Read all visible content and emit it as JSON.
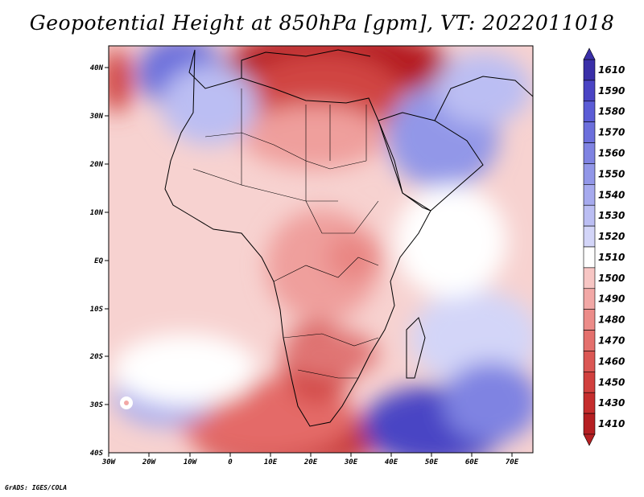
{
  "title": "Geopotential Height at 850hPa [gpm], VT: 2022011018",
  "credit": "GrADS: IGES/COLA",
  "map": {
    "region": "Africa",
    "lon_range": [
      -30,
      75
    ],
    "lat_range": [
      -40,
      45
    ],
    "lon_ticks": [
      "30W",
      "20W",
      "10W",
      "0",
      "10E",
      "20E",
      "30E",
      "40E",
      "50E",
      "60E",
      "70E"
    ],
    "lat_ticks": [
      "40N",
      "30N",
      "20N",
      "10N",
      "EQ",
      "10S",
      "20S",
      "30S",
      "40S"
    ]
  },
  "colorbar": {
    "levels": [
      "1610",
      "1590",
      "1580",
      "1570",
      "1560",
      "1550",
      "1540",
      "1530",
      "1520",
      "1510",
      "1500",
      "1490",
      "1480",
      "1470",
      "1460",
      "1450",
      "1430",
      "1410"
    ],
    "colors": [
      "#3a2fa8",
      "#4a44c4",
      "#5b5cd6",
      "#6c6fdc",
      "#7f83e2",
      "#9297e8",
      "#a6aaee",
      "#bbbef3",
      "#d3d5f8",
      "#ffffff",
      "#f7c6c4",
      "#f2a8a6",
      "#ec8c89",
      "#e4706d",
      "#db5754",
      "#d1403e",
      "#c52d2d",
      "#b51f22"
    ]
  }
}
